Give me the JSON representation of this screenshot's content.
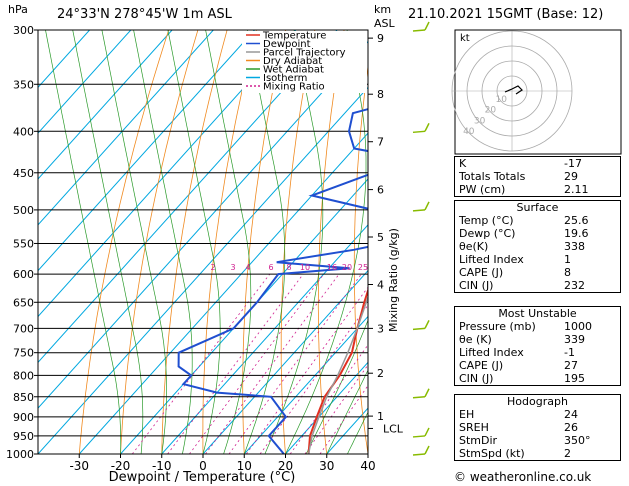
{
  "header": {
    "location": "24°33'N  278°45'W  1m  ASL",
    "datetime": "21.10.2021  15GMT  (Base: 12)",
    "unit_left": "hPa",
    "unit_right_km": "km",
    "unit_right_asl": "ASL"
  },
  "chart_data": {
    "type": "line",
    "title": "",
    "xlabel": "Dewpoint / Temperature (°C)",
    "ylabel": "hPa",
    "y2label": "Mixing Ratio (g/kg)",
    "xlim": [
      -40,
      40
    ],
    "ylim": [
      1000,
      300
    ],
    "x_ticks": [
      "-30",
      "-20",
      "-10",
      "0",
      "10",
      "20",
      "30",
      "40"
    ],
    "pressure_levels": [
      "300",
      "350",
      "400",
      "450",
      "500",
      "550",
      "600",
      "650",
      "700",
      "750",
      "800",
      "850",
      "900",
      "950",
      "1000"
    ],
    "km_ticks": [
      "9",
      "8",
      "7",
      "6",
      "5",
      "4",
      "3",
      "2",
      "1",
      "LCL"
    ],
    "mixing_ratio_labels": [
      "2",
      "3",
      "4",
      "6",
      "8",
      "10",
      "16",
      "20",
      "25"
    ],
    "legend": [
      "Temperature",
      "Dewpoint",
      "Parcel Trajectory",
      "Dry Adiabat",
      "Wet Adiabat",
      "Isotherm",
      "Mixing Ratio"
    ],
    "series": [
      {
        "name": "Temperature",
        "color": "#e03020",
        "points": [
          [
            1000,
            25.6
          ],
          [
            950,
            22
          ],
          [
            900,
            19.5
          ],
          [
            850,
            17
          ],
          [
            800,
            16
          ],
          [
            750,
            14
          ],
          [
            700,
            10
          ],
          [
            650,
            6
          ],
          [
            600,
            2
          ],
          [
            550,
            -2
          ],
          [
            500,
            -6
          ],
          [
            450,
            -11
          ],
          [
            400,
            -17
          ],
          [
            350,
            -25
          ],
          [
            300,
            -34
          ]
        ]
      },
      {
        "name": "Dewpoint",
        "color": "#1f4fd0",
        "points": [
          [
            1000,
            19.6
          ],
          [
            950,
            12
          ],
          [
            900,
            12
          ],
          [
            850,
            4
          ],
          [
            840,
            -10
          ],
          [
            820,
            -20
          ],
          [
            800,
            -20
          ],
          [
            780,
            -25
          ],
          [
            750,
            -28
          ],
          [
            700,
            -20
          ],
          [
            650,
            -20
          ],
          [
            600,
            -21
          ],
          [
            590,
            -5
          ],
          [
            580,
            -24
          ],
          [
            560,
            -8
          ],
          [
            550,
            -2
          ],
          [
            520,
            -8
          ],
          [
            500,
            -12
          ],
          [
            480,
            -30
          ],
          [
            450,
            -20
          ],
          [
            440,
            -5
          ],
          [
            420,
            -30
          ],
          [
            400,
            -35
          ],
          [
            380,
            -38
          ],
          [
            360,
            -25
          ],
          [
            340,
            -30
          ],
          [
            320,
            -15
          ],
          [
            300,
            -22
          ]
        ]
      },
      {
        "name": "Parcel Trajectory",
        "color": "#999999",
        "points": [
          [
            1000,
            25.6
          ],
          [
            950,
            22.5
          ],
          [
            900,
            20
          ],
          [
            850,
            17.5
          ],
          [
            800,
            15.5
          ],
          [
            750,
            13
          ],
          [
            700,
            10
          ],
          [
            650,
            6.5
          ],
          [
            600,
            2.5
          ],
          [
            550,
            -1.5
          ],
          [
            500,
            -6
          ],
          [
            450,
            -11
          ],
          [
            400,
            -17
          ],
          [
            350,
            -24
          ],
          [
            300,
            -33
          ]
        ]
      }
    ],
    "wind_barbs_color": "#88bb00"
  },
  "hodograph": {
    "label": "kt",
    "rings": [
      "10",
      "20",
      "30",
      "40"
    ]
  },
  "indices": {
    "k": {
      "label": "K",
      "value": "-17"
    },
    "tt": {
      "label": "Totals Totals",
      "value": "29"
    },
    "pw": {
      "label": "PW (cm)",
      "value": "2.11"
    }
  },
  "surface": {
    "title": "Surface",
    "temp": {
      "label": "Temp (°C)",
      "value": "25.6"
    },
    "dewp": {
      "label": "Dewp (°C)",
      "value": "19.6"
    },
    "theta": {
      "label": "θe(K)",
      "value": "338"
    },
    "li": {
      "label": "Lifted Index",
      "value": "1"
    },
    "cape": {
      "label": "CAPE (J)",
      "value": "8"
    },
    "cin": {
      "label": "CIN (J)",
      "value": "232"
    }
  },
  "unstable": {
    "title": "Most Unstable",
    "pressure": {
      "label": "Pressure (mb)",
      "value": "1000"
    },
    "theta": {
      "label": "θe (K)",
      "value": "339"
    },
    "li": {
      "label": "Lifted Index",
      "value": "-1"
    },
    "cape": {
      "label": "CAPE (J)",
      "value": "27"
    },
    "cin": {
      "label": "CIN (J)",
      "value": "195"
    }
  },
  "hodo_table": {
    "title": "Hodograph",
    "eh": {
      "label": "EH",
      "value": "24"
    },
    "sreh": {
      "label": "SREH",
      "value": "26"
    },
    "stmdir": {
      "label": "StmDir",
      "value": "350°"
    },
    "stmspd": {
      "label": "StmSpd (kt)",
      "value": "2"
    }
  },
  "credit": "© weatheronline.co.uk"
}
